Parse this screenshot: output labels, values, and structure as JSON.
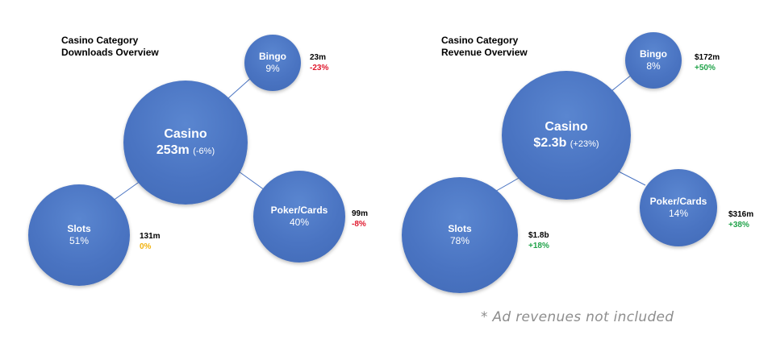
{
  "downloads": {
    "title_line1": "Casino Category",
    "title_line2": "Downloads Overview",
    "center": {
      "name": "Casino",
      "value": "253m",
      "change": "(-6%)"
    },
    "nodes": [
      {
        "name": "Bingo",
        "share": "9%",
        "value": "23m",
        "change": "-23%",
        "change_color": "#e0182d"
      },
      {
        "name": "Poker/Cards",
        "share": "40%",
        "value": "99m",
        "change": "-8%",
        "change_color": "#e0182d"
      },
      {
        "name": "Slots",
        "share": "51%",
        "value": "131m",
        "change": "0%",
        "change_color": "#f1b20e"
      }
    ]
  },
  "revenue": {
    "title_line1": "Casino Category",
    "title_line2": "Revenue Overview",
    "center": {
      "name": "Casino",
      "value": "$2.3b",
      "change": "(+23%)"
    },
    "nodes": [
      {
        "name": "Bingo",
        "share": "8%",
        "value": "$172m",
        "change": "+50%",
        "change_color": "#21a34a"
      },
      {
        "name": "Poker/Cards",
        "share": "14%",
        "value": "$316m",
        "change": "+38%",
        "change_color": "#21a34a"
      },
      {
        "name": "Slots",
        "share": "78%",
        "value": "$1.8b",
        "change": "+18%",
        "change_color": "#21a34a"
      }
    ]
  },
  "footnote": "* Ad revenues not included",
  "colors": {
    "bubble": "#4a74c2",
    "link": "#4a74c2"
  }
}
